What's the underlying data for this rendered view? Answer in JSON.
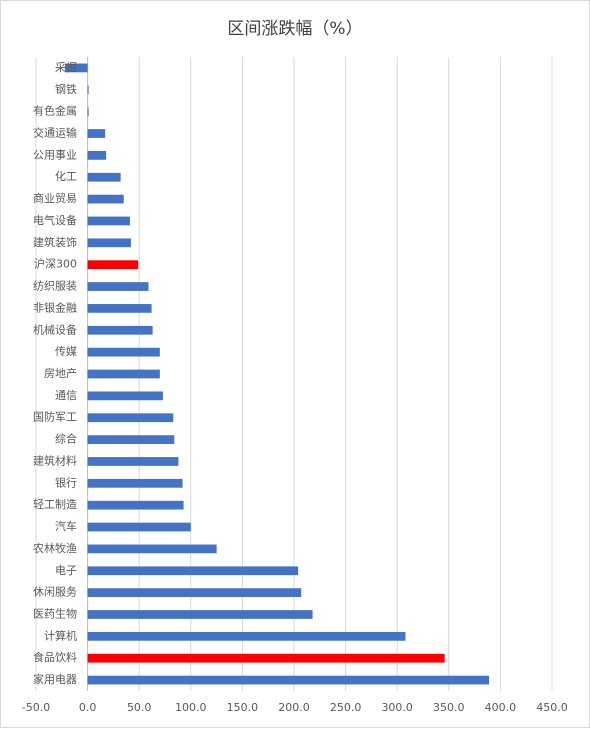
{
  "chart_data": {
    "type": "barh",
    "title": "区间涨跌幅（%）",
    "categories": [
      "采掘",
      "钢铁",
      "有色金属",
      "交通运输",
      "公用事业",
      "化工",
      "商业贸易",
      "电气设备",
      "建筑装饰",
      "沪深300",
      "纺织服装",
      "非银金融",
      "机械设备",
      "传媒",
      "房地产",
      "通信",
      "国防军工",
      "综合",
      "建筑材料",
      "银行",
      "轻工制造",
      "汽车",
      "农林牧渔",
      "电子",
      "休闲服务",
      "医药生物",
      "计算机",
      "食品饮料",
      "家用电器"
    ],
    "values": [
      -22,
      1,
      1,
      17,
      18,
      32,
      35,
      41,
      42,
      49,
      59,
      62,
      63,
      70,
      70,
      73,
      83,
      84,
      88,
      92,
      93,
      100,
      125,
      204,
      207,
      218,
      308,
      346,
      389
    ],
    "colors": [
      "#4472c4",
      "#4472c4",
      "#4472c4",
      "#4472c4",
      "#4472c4",
      "#4472c4",
      "#4472c4",
      "#4472c4",
      "#4472c4",
      "#ff0000",
      "#4472c4",
      "#4472c4",
      "#4472c4",
      "#4472c4",
      "#4472c4",
      "#4472c4",
      "#4472c4",
      "#4472c4",
      "#4472c4",
      "#4472c4",
      "#4472c4",
      "#4472c4",
      "#4472c4",
      "#4472c4",
      "#4472c4",
      "#4472c4",
      "#4472c4",
      "#ff0000",
      "#4472c4"
    ],
    "xlim": [
      -50,
      450
    ],
    "xticks": [
      {
        "value": -50,
        "label": "-50.0"
      },
      {
        "value": 0,
        "label": "0.0"
      },
      {
        "value": 50,
        "label": "50.0"
      },
      {
        "value": 100,
        "label": "100.0"
      },
      {
        "value": 150,
        "label": "150.0"
      },
      {
        "value": 200,
        "label": "200.0"
      },
      {
        "value": 250,
        "label": "250.0"
      },
      {
        "value": 300,
        "label": "300.0"
      },
      {
        "value": 350,
        "label": "350.0"
      },
      {
        "value": 400,
        "label": "400.0"
      },
      {
        "value": 450,
        "label": "450.0"
      }
    ],
    "grid": true
  }
}
